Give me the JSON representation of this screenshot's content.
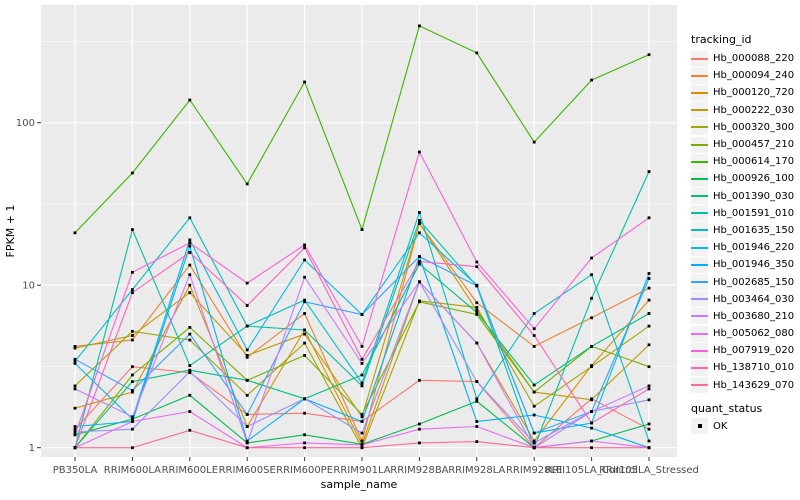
{
  "chart_data": {
    "type": "line",
    "title": "",
    "xlabel": "sample_name",
    "ylabel": "FPKM + 1",
    "y_scale": "log10",
    "y_ticks": [
      1,
      10,
      100
    ],
    "y_minor_breaks": [
      3.162,
      31.62,
      316.2
    ],
    "ylim": [
      0.95,
      530
    ],
    "grid": true,
    "panel_bg": "#EBEBEB",
    "grid_color": "#FFFFFF",
    "tick_label_color": "#4D4D4D",
    "tick_mark_color": "#333333",
    "marker": {
      "shape": "square",
      "color": "#000000"
    },
    "legend": {
      "position": "right",
      "color_title": "tracking_id",
      "shape_title": "quant_status",
      "shape_items": [
        {
          "label": "OK",
          "marker": "black-square"
        }
      ]
    },
    "categories": [
      "PB350LA",
      "RRIM600LA",
      "RRIM600LE",
      "RRIM600SE",
      "RRIM600PE",
      "RRIM901LA",
      "RRIM928BA",
      "RRIM928LA",
      "RRIM928LE",
      "RRII105LA_Control",
      "RRII105LA_Stressed"
    ],
    "series": [
      {
        "name": "Hb_000088_220",
        "color": "#F8766D",
        "values": [
          1.3,
          3.15,
          2.9,
          1.6,
          1.63,
          1.45,
          2.6,
          2.55,
          1.0,
          2.0,
          1.3
        ]
      },
      {
        "name": "Hb_000094_240",
        "color": "#EA8331",
        "values": [
          4.2,
          4.6,
          13.3,
          3.6,
          6.7,
          1.1,
          24,
          7.8,
          4.2,
          6.3,
          9.6
        ]
      },
      {
        "name": "Hb_000120_720",
        "color": "#D89000",
        "values": [
          1.75,
          2.2,
          10,
          1.35,
          5.3,
          1.05,
          10.5,
          4.4,
          1.1,
          3.2,
          8.1
        ]
      },
      {
        "name": "Hb_000222_030",
        "color": "#C09B00",
        "values": [
          4.1,
          4.9,
          9.0,
          3.7,
          5.0,
          1.55,
          24,
          7.0,
          2.2,
          1.97,
          4.3
        ]
      },
      {
        "name": "Hb_000320_300",
        "color": "#A3A500",
        "values": [
          2.4,
          5.2,
          4.6,
          2.1,
          4.4,
          1.0,
          8.0,
          7.3,
          1.8,
          3.15,
          5.6
        ]
      },
      {
        "name": "Hb_000457_210",
        "color": "#7CAE00",
        "values": [
          1.0,
          2.8,
          5.5,
          2.6,
          3.7,
          1.6,
          7.9,
          6.6,
          2.2,
          4.2,
          3.15
        ]
      },
      {
        "name": "Hb_000614_170",
        "color": "#39B600",
        "values": [
          21,
          49,
          138,
          42,
          178,
          22,
          394,
          269,
          76,
          183,
          262
        ]
      },
      {
        "name": "Hb_000926_100",
        "color": "#00BB4E",
        "values": [
          1.2,
          1.5,
          2.1,
          1.07,
          1.2,
          1.05,
          1.4,
          1.93,
          1.0,
          1.1,
          1.4
        ]
      },
      {
        "name": "Hb_001390_030",
        "color": "#00BF7D",
        "values": [
          1.0,
          2.55,
          3.0,
          2.6,
          2.0,
          2.8,
          13.5,
          6.8,
          2.43,
          4.2,
          6.7
        ]
      },
      {
        "name": "Hb_001591_010",
        "color": "#00C1A3",
        "values": [
          1.0,
          22,
          3.2,
          5.6,
          5.3,
          2.4,
          25,
          9.9,
          1.0,
          8.3,
          50
        ]
      },
      {
        "name": "Hb_001635_150",
        "color": "#00BFC4",
        "values": [
          3.4,
          9.4,
          26,
          5.6,
          8.1,
          2.5,
          28,
          2.0,
          6.7,
          11.6,
          1.1
        ]
      },
      {
        "name": "Hb_001946_220",
        "color": "#00BAE0",
        "values": [
          3.3,
          1.5,
          19,
          4.0,
          14.3,
          6.6,
          21,
          10,
          1.23,
          1.42,
          11.8
        ]
      },
      {
        "name": "Hb_001946_350",
        "color": "#00B0F6",
        "values": [
          1.35,
          1.45,
          17.4,
          1.1,
          2.0,
          1.45,
          15,
          1.45,
          1.59,
          1.32,
          1.0
        ]
      },
      {
        "name": "Hb_002685_150",
        "color": "#35A2FF",
        "values": [
          3.5,
          2.25,
          5.0,
          1.6,
          7.9,
          6.6,
          15,
          9.9,
          1.23,
          1.67,
          11
        ]
      },
      {
        "name": "Hb_003464_030",
        "color": "#9590FF",
        "values": [
          1.25,
          1.3,
          2.94,
          1.35,
          2.0,
          1.23,
          10.5,
          2.55,
          1.07,
          1.67,
          1.97
        ]
      },
      {
        "name": "Hb_003680_210",
        "color": "#C77CFF",
        "values": [
          2.3,
          1.55,
          11.6,
          1.07,
          11.2,
          3.3,
          10.5,
          4.4,
          1.0,
          1.67,
          2.4
        ]
      },
      {
        "name": "Hb_005062_080",
        "color": "#E76BF3",
        "values": [
          1.0,
          1.45,
          1.67,
          1.0,
          1.07,
          1.04,
          1.3,
          1.35,
          1.0,
          1.1,
          1.0
        ]
      },
      {
        "name": "Hb_007919_020",
        "color": "#FA62DB",
        "values": [
          1.2,
          12,
          18.2,
          10.3,
          17.7,
          4.2,
          66,
          13.9,
          5.4,
          14.7,
          26
        ]
      },
      {
        "name": "Hb_138710_010",
        "color": "#FF62BC",
        "values": [
          1.0,
          9.0,
          15.9,
          7.5,
          17,
          3.5,
          14,
          13,
          4.9,
          1.42,
          2.3
        ]
      },
      {
        "name": "Hb_143629_070",
        "color": "#FF6A98",
        "values": [
          1.0,
          1.0,
          1.28,
          1.0,
          1.0,
          1.0,
          1.07,
          1.09,
          1.0,
          1.0,
          1.0
        ]
      }
    ]
  }
}
